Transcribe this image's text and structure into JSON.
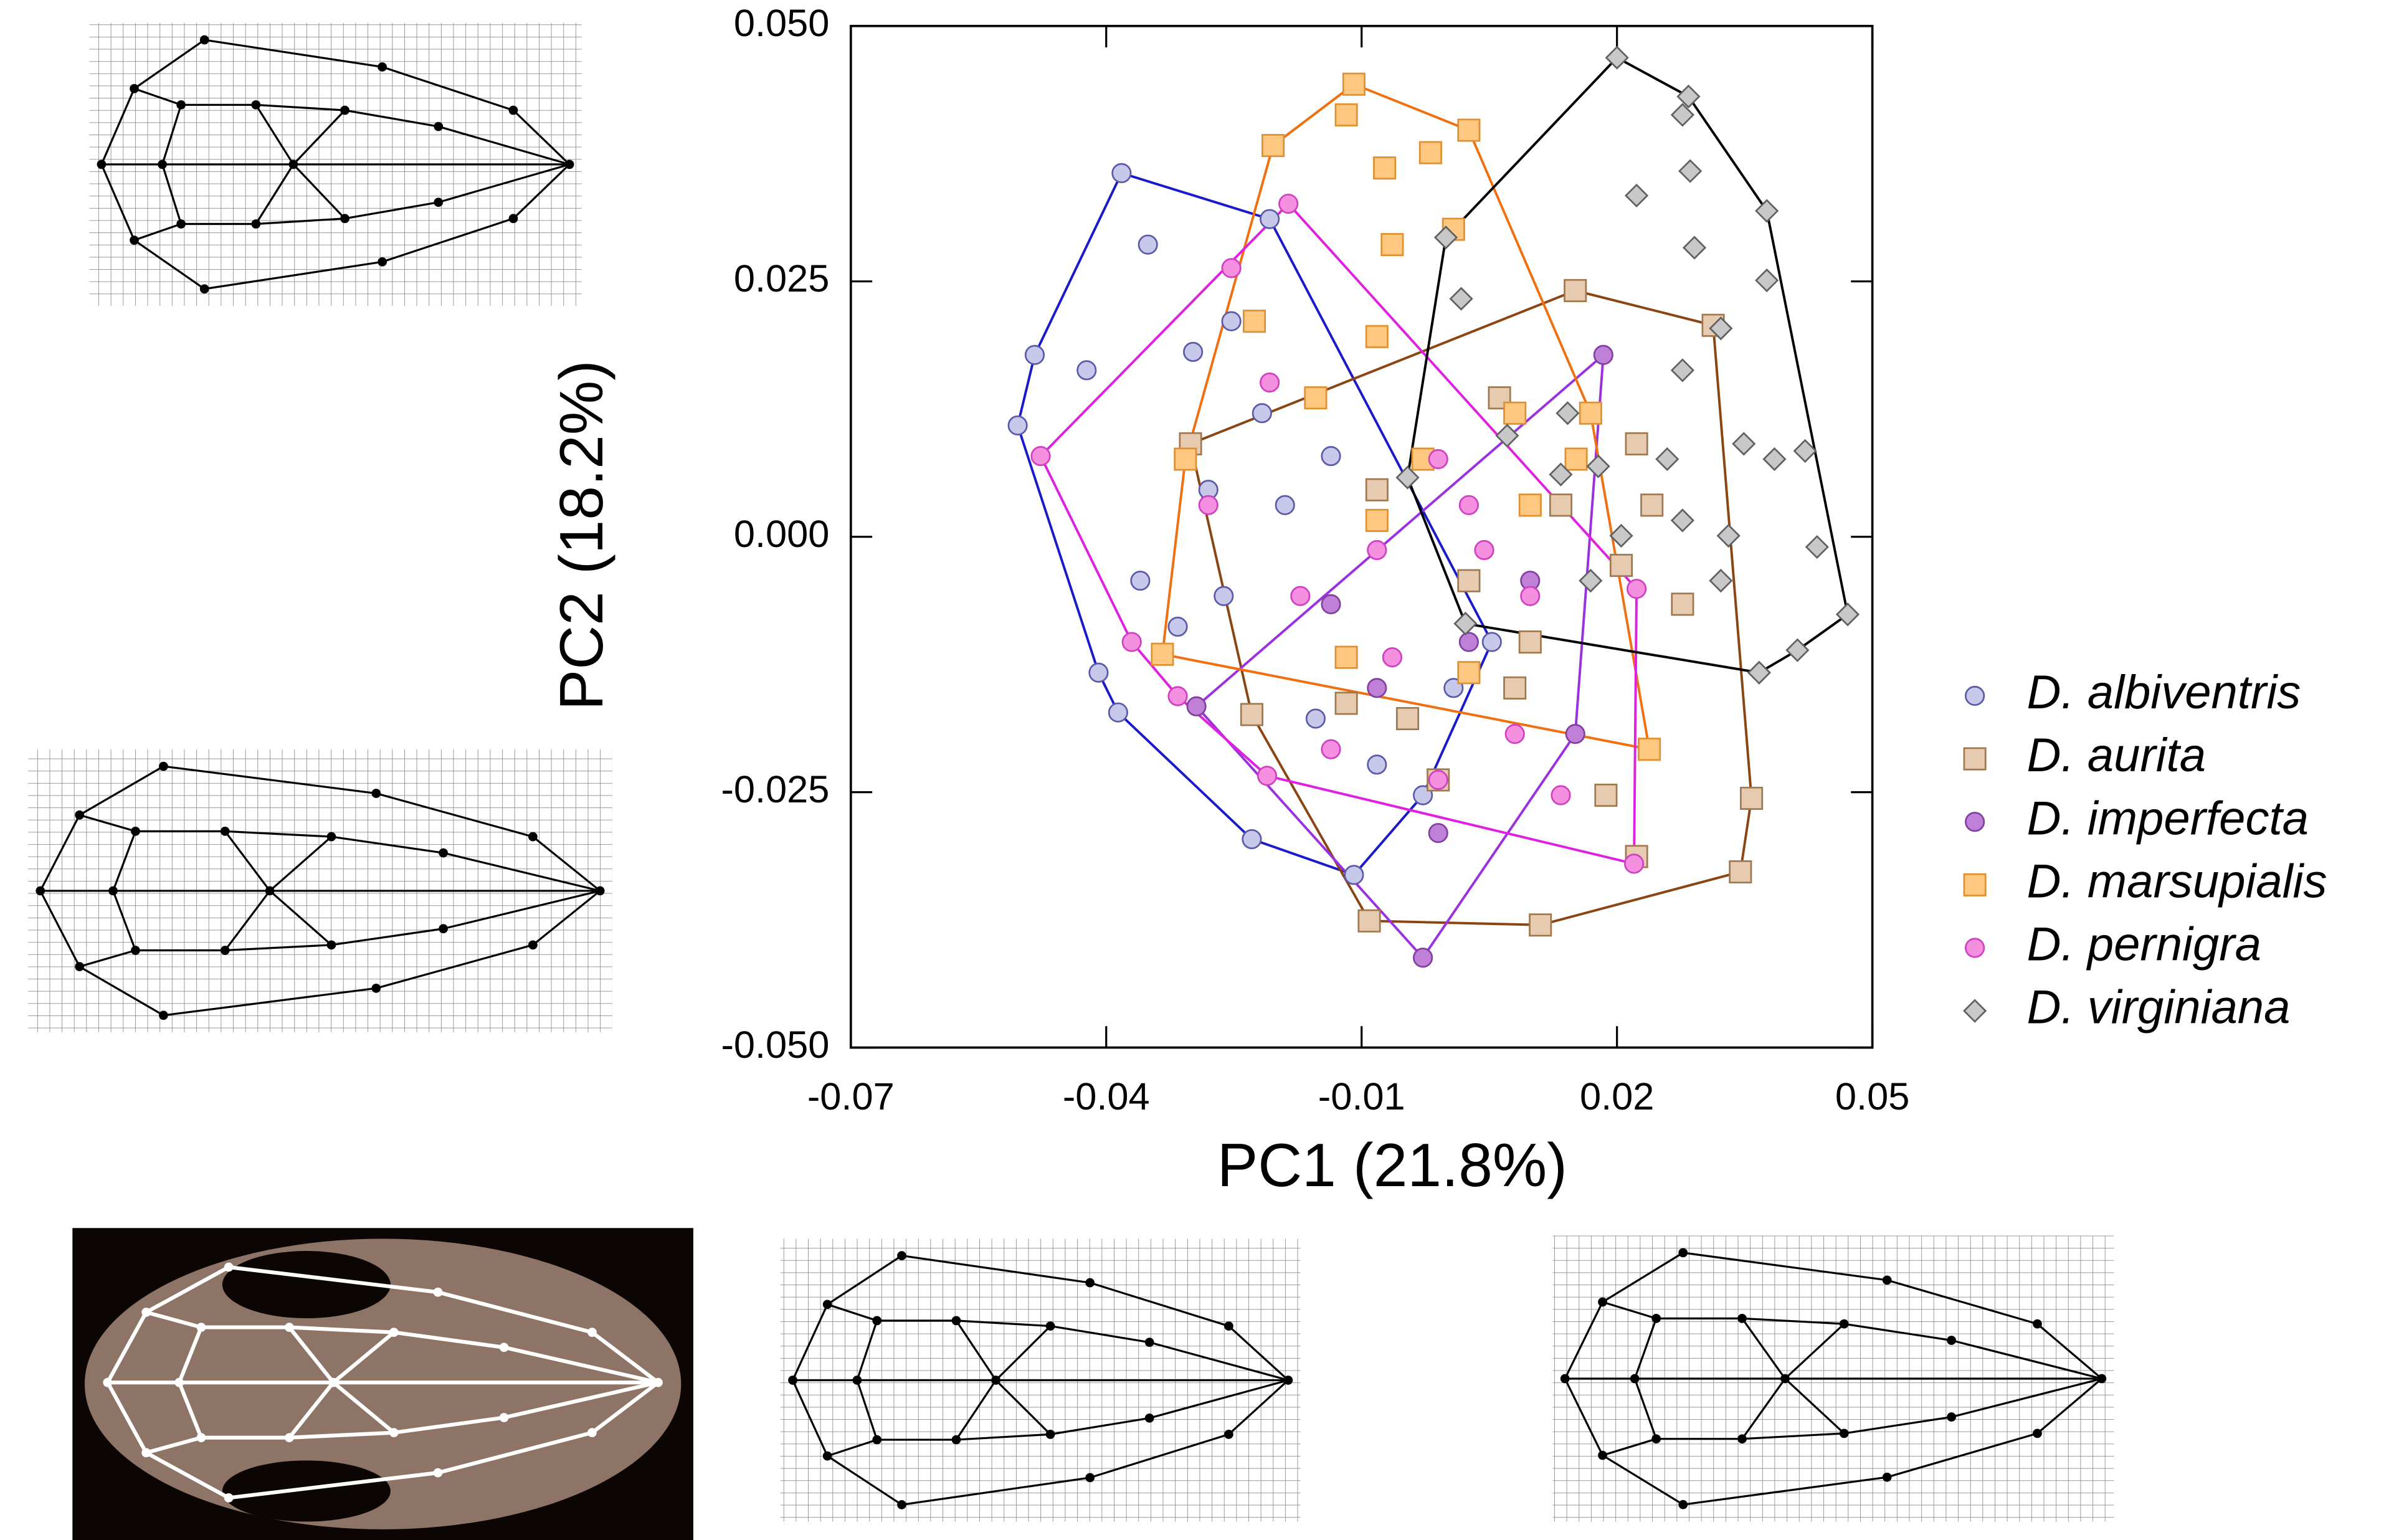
{
  "chart_data": {
    "type": "scatter",
    "x_label": "PC1  (21.8%)",
    "y_label": "PC2 (18.2%)",
    "xlim": [
      -0.07,
      0.05
    ],
    "xticks": [
      -0.07,
      -0.04,
      -0.01,
      0.02,
      0.05
    ],
    "ylim": [
      -0.05,
      0.05
    ],
    "yticks": [
      {
        "value": -0.05,
        "label": "-0.050"
      },
      {
        "value": -0.025,
        "label": "-0.025"
      },
      {
        "value": 0,
        "label": "0.000"
      },
      {
        "value": 0.025,
        "label": "0.025"
      },
      {
        "value": 0.05,
        "label": "0.050"
      }
    ],
    "convex_hulls": true,
    "series": [
      {
        "name": "D. albiventris",
        "marker": "circle",
        "color": "#c8c8ea",
        "edge_color": "#5a5aa8",
        "hull_color": "#1a1acc",
        "x": [
          -0.0382,
          -0.0208,
          0.0053,
          -0.0109,
          -0.0229,
          -0.0386,
          -0.0409,
          -0.0504,
          -0.0484,
          -0.0351,
          -0.0423,
          -0.0298,
          -0.0253,
          -0.0217,
          -0.0136,
          -0.036,
          -0.0262,
          -0.0154,
          -0.0028,
          0.0008,
          -0.028,
          -0.0316,
          -0.019,
          -0.0082
        ],
        "y": [
          0.0356,
          0.0311,
          -0.0103,
          -0.0331,
          -0.0296,
          -0.0172,
          -0.0133,
          0.0109,
          0.0178,
          0.0286,
          0.0163,
          0.0181,
          0.0211,
          0.0121,
          0.0079,
          -0.0043,
          -0.0058,
          -0.0178,
          -0.0253,
          -0.0148,
          0.0046,
          -0.0088,
          0.0031,
          -0.0223
        ]
      },
      {
        "name": "D. aurita",
        "marker": "square",
        "color": "#e6cbb0",
        "edge_color": "#a07850",
        "hull_color": "#8b4513",
        "x": [
          -0.0301,
          0.0151,
          0.0313,
          0.0358,
          0.0345,
          0.011,
          -0.0091,
          -0.0229,
          -0.0082,
          0.0026,
          0.0134,
          0.0205,
          0.0277,
          0.008,
          0.0187,
          0.0223,
          -0.0046,
          -0.0118,
          0.0223,
          0.0098,
          -0.001,
          0.0241,
          0.0062
        ],
        "y": [
          0.0091,
          0.0241,
          0.0207,
          -0.0256,
          -0.0328,
          -0.038,
          -0.0376,
          -0.0174,
          0.0046,
          -0.0043,
          0.0031,
          -0.0028,
          -0.0066,
          -0.0148,
          -0.0253,
          -0.0313,
          -0.0178,
          -0.0163,
          0.0091,
          -0.0103,
          -0.0238,
          0.0031,
          0.0136
        ]
      },
      {
        "name": "D. imperfecta",
        "marker": "circle",
        "color": "#c080d8",
        "edge_color": "#8040a0",
        "hull_color": "#9b30e0",
        "x": [
          0.0184,
          0.0151,
          -0.0028,
          -0.0294,
          -0.0136,
          -0.001,
          0.0026,
          0.0098,
          -0.0082
        ],
        "y": [
          0.0178,
          -0.0193,
          -0.0412,
          -0.0166,
          -0.0066,
          -0.029,
          -0.0103,
          -0.0043,
          -0.0148
        ]
      },
      {
        "name": "D. marsupialis",
        "marker": "square",
        "color": "#ffc880",
        "edge_color": "#e09030",
        "hull_color": "#f07010",
        "x": [
          -0.0109,
          0.0026,
          0.0169,
          0.0238,
          -0.0334,
          -0.0307,
          -0.0204,
          -0.0118,
          -0.0073,
          -0.0019,
          -0.0064,
          0.0008,
          -0.0082,
          -0.0154,
          -0.0028,
          0.008,
          0.0152,
          -0.0226,
          -0.0082,
          0.0026,
          0.0098,
          -0.0118
        ],
        "y": [
          0.0443,
          0.0398,
          0.0121,
          -0.0208,
          -0.0115,
          0.0076,
          0.0383,
          0.0413,
          0.0361,
          0.0376,
          0.0286,
          0.0301,
          0.0196,
          0.0136,
          0.0076,
          0.0121,
          0.0076,
          0.0211,
          0.0016,
          -0.0133,
          0.0031,
          -0.0118
        ]
      },
      {
        "name": "D. pernigra",
        "marker": "circle",
        "color": "#f590e0",
        "edge_color": "#d040c0",
        "hull_color": "#e020e0",
        "x": [
          -0.0186,
          0.0223,
          0.022,
          -0.0211,
          -0.0316,
          -0.0477,
          -0.0253,
          -0.0208,
          -0.028,
          -0.0172,
          -0.0082,
          -0.001,
          0.0026,
          0.0098,
          0.008,
          -0.0064,
          -0.0136,
          0.0134,
          -0.037,
          0.0044,
          -0.001
        ],
        "y": [
          0.0326,
          -0.0051,
          -0.032,
          -0.0234,
          -0.0156,
          0.0079,
          0.0263,
          0.0151,
          0.0031,
          -0.0058,
          -0.0013,
          0.0076,
          0.0031,
          -0.0058,
          -0.0193,
          -0.0118,
          -0.0208,
          -0.0253,
          -0.0103,
          -0.0013,
          -0.0238
        ]
      },
      {
        "name": "D. virginiana",
        "marker": "diamond",
        "color": "#c8c8c8",
        "edge_color": "#606060",
        "hull_color": "#000000",
        "x": [
          0.02,
          0.0284,
          0.0376,
          0.0471,
          0.0367,
          0.0022,
          -0.0046,
          -0.0001,
          0.0277,
          0.0223,
          0.0286,
          0.0291,
          0.0376,
          0.0322,
          0.0277,
          0.0349,
          0.0385,
          0.0421,
          0.0259,
          0.0331,
          0.0435,
          0.0277,
          0.0205,
          0.0142,
          0.0178,
          0.0134,
          0.0412,
          0.0071,
          0.0017,
          0.0169,
          0.0322
        ],
        "y": [
          0.0469,
          0.0431,
          0.0319,
          -0.0076,
          -0.0133,
          -0.0085,
          0.0058,
          0.0293,
          0.0413,
          0.0334,
          0.0358,
          0.0283,
          0.0251,
          0.0204,
          0.0163,
          0.0091,
          0.0076,
          0.0084,
          0.0076,
          0.0001,
          -0.001,
          0.0016,
          0.0001,
          0.0121,
          0.0069,
          0.0061,
          -0.0111,
          0.0099,
          0.0233,
          -0.0043,
          -0.0043
        ]
      }
    ]
  }
}
